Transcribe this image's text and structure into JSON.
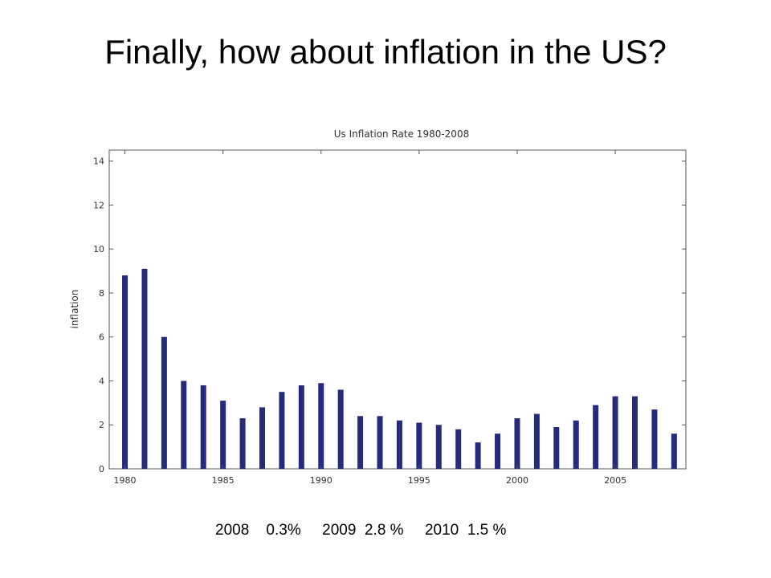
{
  "slide": {
    "title": "Finally, how about inflation in the US?"
  },
  "chart_data": {
    "type": "bar",
    "title": "Us Inflation Rate 1980-2008",
    "xlabel": "",
    "ylabel": "inflation",
    "x_tick_labels": [
      "1980",
      "1985",
      "1990",
      "1995",
      "2000",
      "2005"
    ],
    "y_tick_labels": [
      "0",
      "2",
      "4",
      "6",
      "8",
      "10",
      "12",
      "14"
    ],
    "ylim": [
      0,
      14.5
    ],
    "xlim": [
      1979.2,
      2008.6
    ],
    "grid": false,
    "bar_color": "#262a7a",
    "categories": [
      "1980",
      "1981",
      "1982",
      "1983",
      "1984",
      "1985",
      "1986",
      "1987",
      "1988",
      "1989",
      "1990",
      "1991",
      "1992",
      "1993",
      "1994",
      "1995",
      "1996",
      "1997",
      "1998",
      "1999",
      "2000",
      "2001",
      "2002",
      "2003",
      "2004",
      "2005",
      "2006",
      "2007",
      "2008"
    ],
    "values": [
      8.8,
      9.1,
      6.0,
      4.0,
      3.8,
      3.1,
      2.3,
      2.8,
      3.5,
      3.8,
      3.9,
      3.6,
      2.4,
      2.4,
      2.2,
      2.1,
      2.0,
      1.8,
      1.2,
      1.6,
      2.3,
      2.5,
      1.9,
      2.2,
      2.9,
      3.3,
      3.3,
      2.7,
      1.6
    ]
  },
  "footnote": {
    "y2008": "2008",
    "v2008": "0.3%",
    "y2009": "2009",
    "v2009": "2.8 %",
    "y2010": "2010",
    "v2010": "1.5 %"
  }
}
